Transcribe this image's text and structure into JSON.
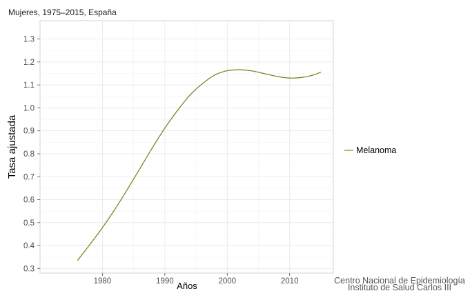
{
  "chart_data": {
    "type": "line",
    "title": "Mujeres, 1975–2015,  España",
    "xlabel": "Años",
    "ylabel": "Tasa ajustada",
    "xlim": [
      1970,
      2017
    ],
    "ylim": [
      0.28,
      1.38
    ],
    "x_ticks": [
      1980,
      1990,
      2000,
      2010
    ],
    "y_ticks": [
      0.3,
      0.4,
      0.5,
      0.6,
      0.7,
      0.8,
      0.9,
      1.0,
      1.1,
      1.2,
      1.3
    ],
    "grid": true,
    "legend_position": "right",
    "series": [
      {
        "name": "Melanoma",
        "color": "#6b8e23",
        "x": [
          1976,
          1978,
          1980,
          1982,
          1984,
          1986,
          1988,
          1990,
          1992,
          1994,
          1996,
          1998,
          2000,
          2002,
          2004,
          2006,
          2008,
          2010,
          2012,
          2014,
          2015
        ],
        "y": [
          0.335,
          0.405,
          0.478,
          0.558,
          0.645,
          0.735,
          0.826,
          0.912,
          0.988,
          1.055,
          1.105,
          1.143,
          1.162,
          1.166,
          1.161,
          1.149,
          1.137,
          1.13,
          1.133,
          1.145,
          1.156
        ]
      }
    ],
    "source_lines": [
      "Centro Nacional de Epidemiología",
      "Instituto de Salud Carlos III"
    ]
  }
}
